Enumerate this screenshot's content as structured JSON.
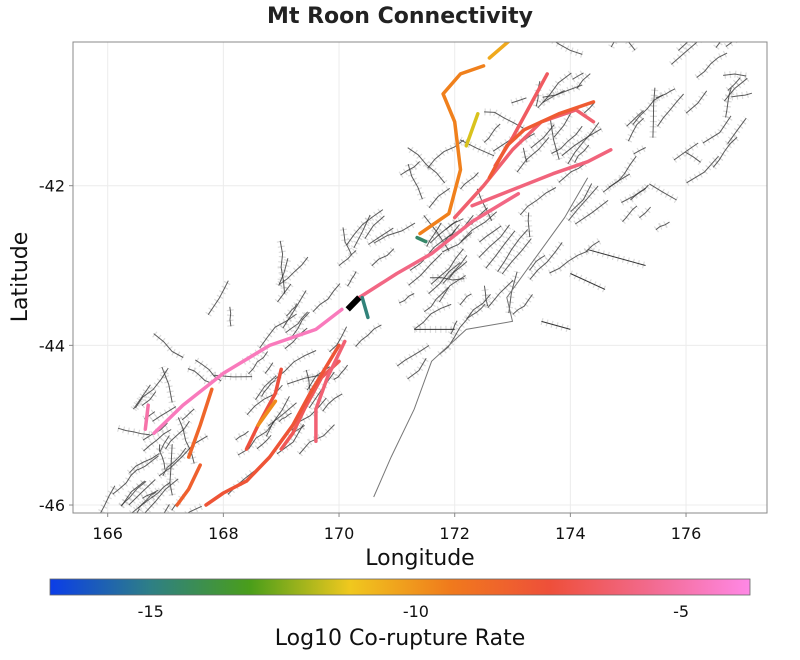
{
  "title": "Mt Roon Connectivity",
  "xaxis": {
    "label": "Longitude",
    "range": [
      165.4,
      177.4
    ],
    "ticks": [
      {
        "value": 166,
        "label": "166"
      },
      {
        "value": 168,
        "label": "168"
      },
      {
        "value": 170,
        "label": "170"
      },
      {
        "value": 172,
        "label": "172"
      },
      {
        "value": 174,
        "label": "174"
      },
      {
        "value": 176,
        "label": "176"
      }
    ]
  },
  "yaxis": {
    "label": "Latitude",
    "range": [
      -46.1,
      -40.2
    ],
    "ticks": [
      {
        "value": -42,
        "label": "-42"
      },
      {
        "value": -44,
        "label": "-44"
      },
      {
        "value": -46,
        "label": "-46"
      }
    ]
  },
  "colorbar": {
    "label": "Log10 Co-rupture Rate",
    "range": [
      -16.9,
      -3.7
    ],
    "stops": [
      "#0b3de8",
      "#2e7f86",
      "#4a9e1a",
      "#f0c81e",
      "#f07a1c",
      "#ee4f3a",
      "#f26a8e",
      "#ff88e6"
    ],
    "ticks": [
      {
        "value": -15,
        "label": "-15"
      },
      {
        "value": -10,
        "label": "-10"
      },
      {
        "value": -5,
        "label": "-5"
      }
    ]
  },
  "colors": {
    "frame": "#888888",
    "grid": "#ececec",
    "fault_trace": "#333333",
    "fault_polygon": "#9a9a9a",
    "coast": "#777777",
    "source_fault": "#000000"
  },
  "source_fault": {
    "path": [
      [
        170.15,
        -43.55
      ],
      [
        170.35,
        -43.4
      ]
    ]
  },
  "ruptures": [
    {
      "rate": -4.6,
      "path": [
        [
          166.8,
          -45.1
        ],
        [
          167.3,
          -44.75
        ],
        [
          168.0,
          -44.35
        ],
        [
          168.8,
          -44.0
        ],
        [
          169.6,
          -43.8
        ],
        [
          170.05,
          -43.55
        ]
      ]
    },
    {
      "rate": -5.0,
      "path": [
        [
          166.65,
          -45.05
        ],
        [
          166.7,
          -44.75
        ]
      ]
    },
    {
      "rate": -5.8,
      "path": [
        [
          170.35,
          -43.4
        ],
        [
          171.0,
          -43.1
        ],
        [
          171.6,
          -42.85
        ],
        [
          172.3,
          -42.45
        ],
        [
          173.1,
          -42.1
        ]
      ]
    },
    {
      "rate": -6.3,
      "path": [
        [
          172.0,
          -42.4
        ],
        [
          172.5,
          -42.0
        ],
        [
          173.0,
          -41.55
        ],
        [
          173.5,
          -41.2
        ],
        [
          174.1,
          -41.05
        ],
        [
          174.4,
          -41.2
        ]
      ]
    },
    {
      "rate": -6.0,
      "path": [
        [
          172.3,
          -42.25
        ],
        [
          173.0,
          -42.05
        ],
        [
          173.7,
          -41.85
        ],
        [
          174.3,
          -41.7
        ],
        [
          174.7,
          -41.55
        ]
      ]
    },
    {
      "rate": -6.6,
      "path": [
        [
          172.7,
          -41.75
        ],
        [
          173.0,
          -41.4
        ],
        [
          173.3,
          -41.0
        ],
        [
          173.6,
          -40.6
        ]
      ]
    },
    {
      "rate": -8.0,
      "path": [
        [
          172.6,
          -41.9
        ],
        [
          172.9,
          -41.5
        ],
        [
          173.2,
          -41.3
        ],
        [
          173.8,
          -41.1
        ],
        [
          174.4,
          -40.95
        ]
      ]
    },
    {
      "rate": -9.5,
      "path": [
        [
          171.4,
          -42.6
        ],
        [
          171.9,
          -42.35
        ],
        [
          172.1,
          -41.8
        ],
        [
          172.0,
          -41.2
        ],
        [
          171.8,
          -40.85
        ],
        [
          172.1,
          -40.6
        ],
        [
          172.5,
          -40.5
        ]
      ]
    },
    {
      "rate": -10.5,
      "path": [
        [
          172.6,
          -40.4
        ],
        [
          173.0,
          -40.15
        ]
      ]
    },
    {
      "rate": -11.5,
      "path": [
        [
          172.2,
          -41.5
        ],
        [
          172.4,
          -41.1
        ]
      ]
    },
    {
      "rate": -6.8,
      "path": [
        [
          170.0,
          -44.2
        ],
        [
          169.7,
          -44.4
        ],
        [
          169.4,
          -44.8
        ],
        [
          169.2,
          -45.1
        ],
        [
          169.0,
          -45.3
        ]
      ]
    },
    {
      "rate": -6.2,
      "path": [
        [
          170.1,
          -43.95
        ],
        [
          169.8,
          -44.4
        ],
        [
          169.6,
          -44.8
        ],
        [
          169.6,
          -45.2
        ]
      ]
    },
    {
      "rate": -7.7,
      "path": [
        [
          170.0,
          -44.0
        ],
        [
          169.5,
          -44.6
        ],
        [
          169.2,
          -45.0
        ],
        [
          168.8,
          -45.4
        ],
        [
          168.4,
          -45.7
        ],
        [
          168.0,
          -45.85
        ],
        [
          167.7,
          -46.0
        ]
      ]
    },
    {
      "rate": -7.4,
      "path": [
        [
          169.0,
          -44.3
        ],
        [
          168.9,
          -44.6
        ],
        [
          168.6,
          -45.0
        ],
        [
          168.4,
          -45.3
        ]
      ]
    },
    {
      "rate": -8.5,
      "path": [
        [
          167.8,
          -44.55
        ],
        [
          167.6,
          -45.0
        ],
        [
          167.4,
          -45.4
        ]
      ]
    },
    {
      "rate": -8.2,
      "path": [
        [
          167.6,
          -45.5
        ],
        [
          167.4,
          -45.8
        ],
        [
          167.2,
          -46.0
        ]
      ]
    },
    {
      "rate": -9.8,
      "path": [
        [
          168.9,
          -44.7
        ],
        [
          168.6,
          -45.0
        ]
      ]
    },
    {
      "rate": -14.5,
      "path": [
        [
          171.35,
          -42.65
        ],
        [
          171.5,
          -42.7
        ]
      ]
    },
    {
      "rate": -14.8,
      "path": [
        [
          170.4,
          -43.4
        ],
        [
          170.5,
          -43.65
        ]
      ]
    }
  ]
}
